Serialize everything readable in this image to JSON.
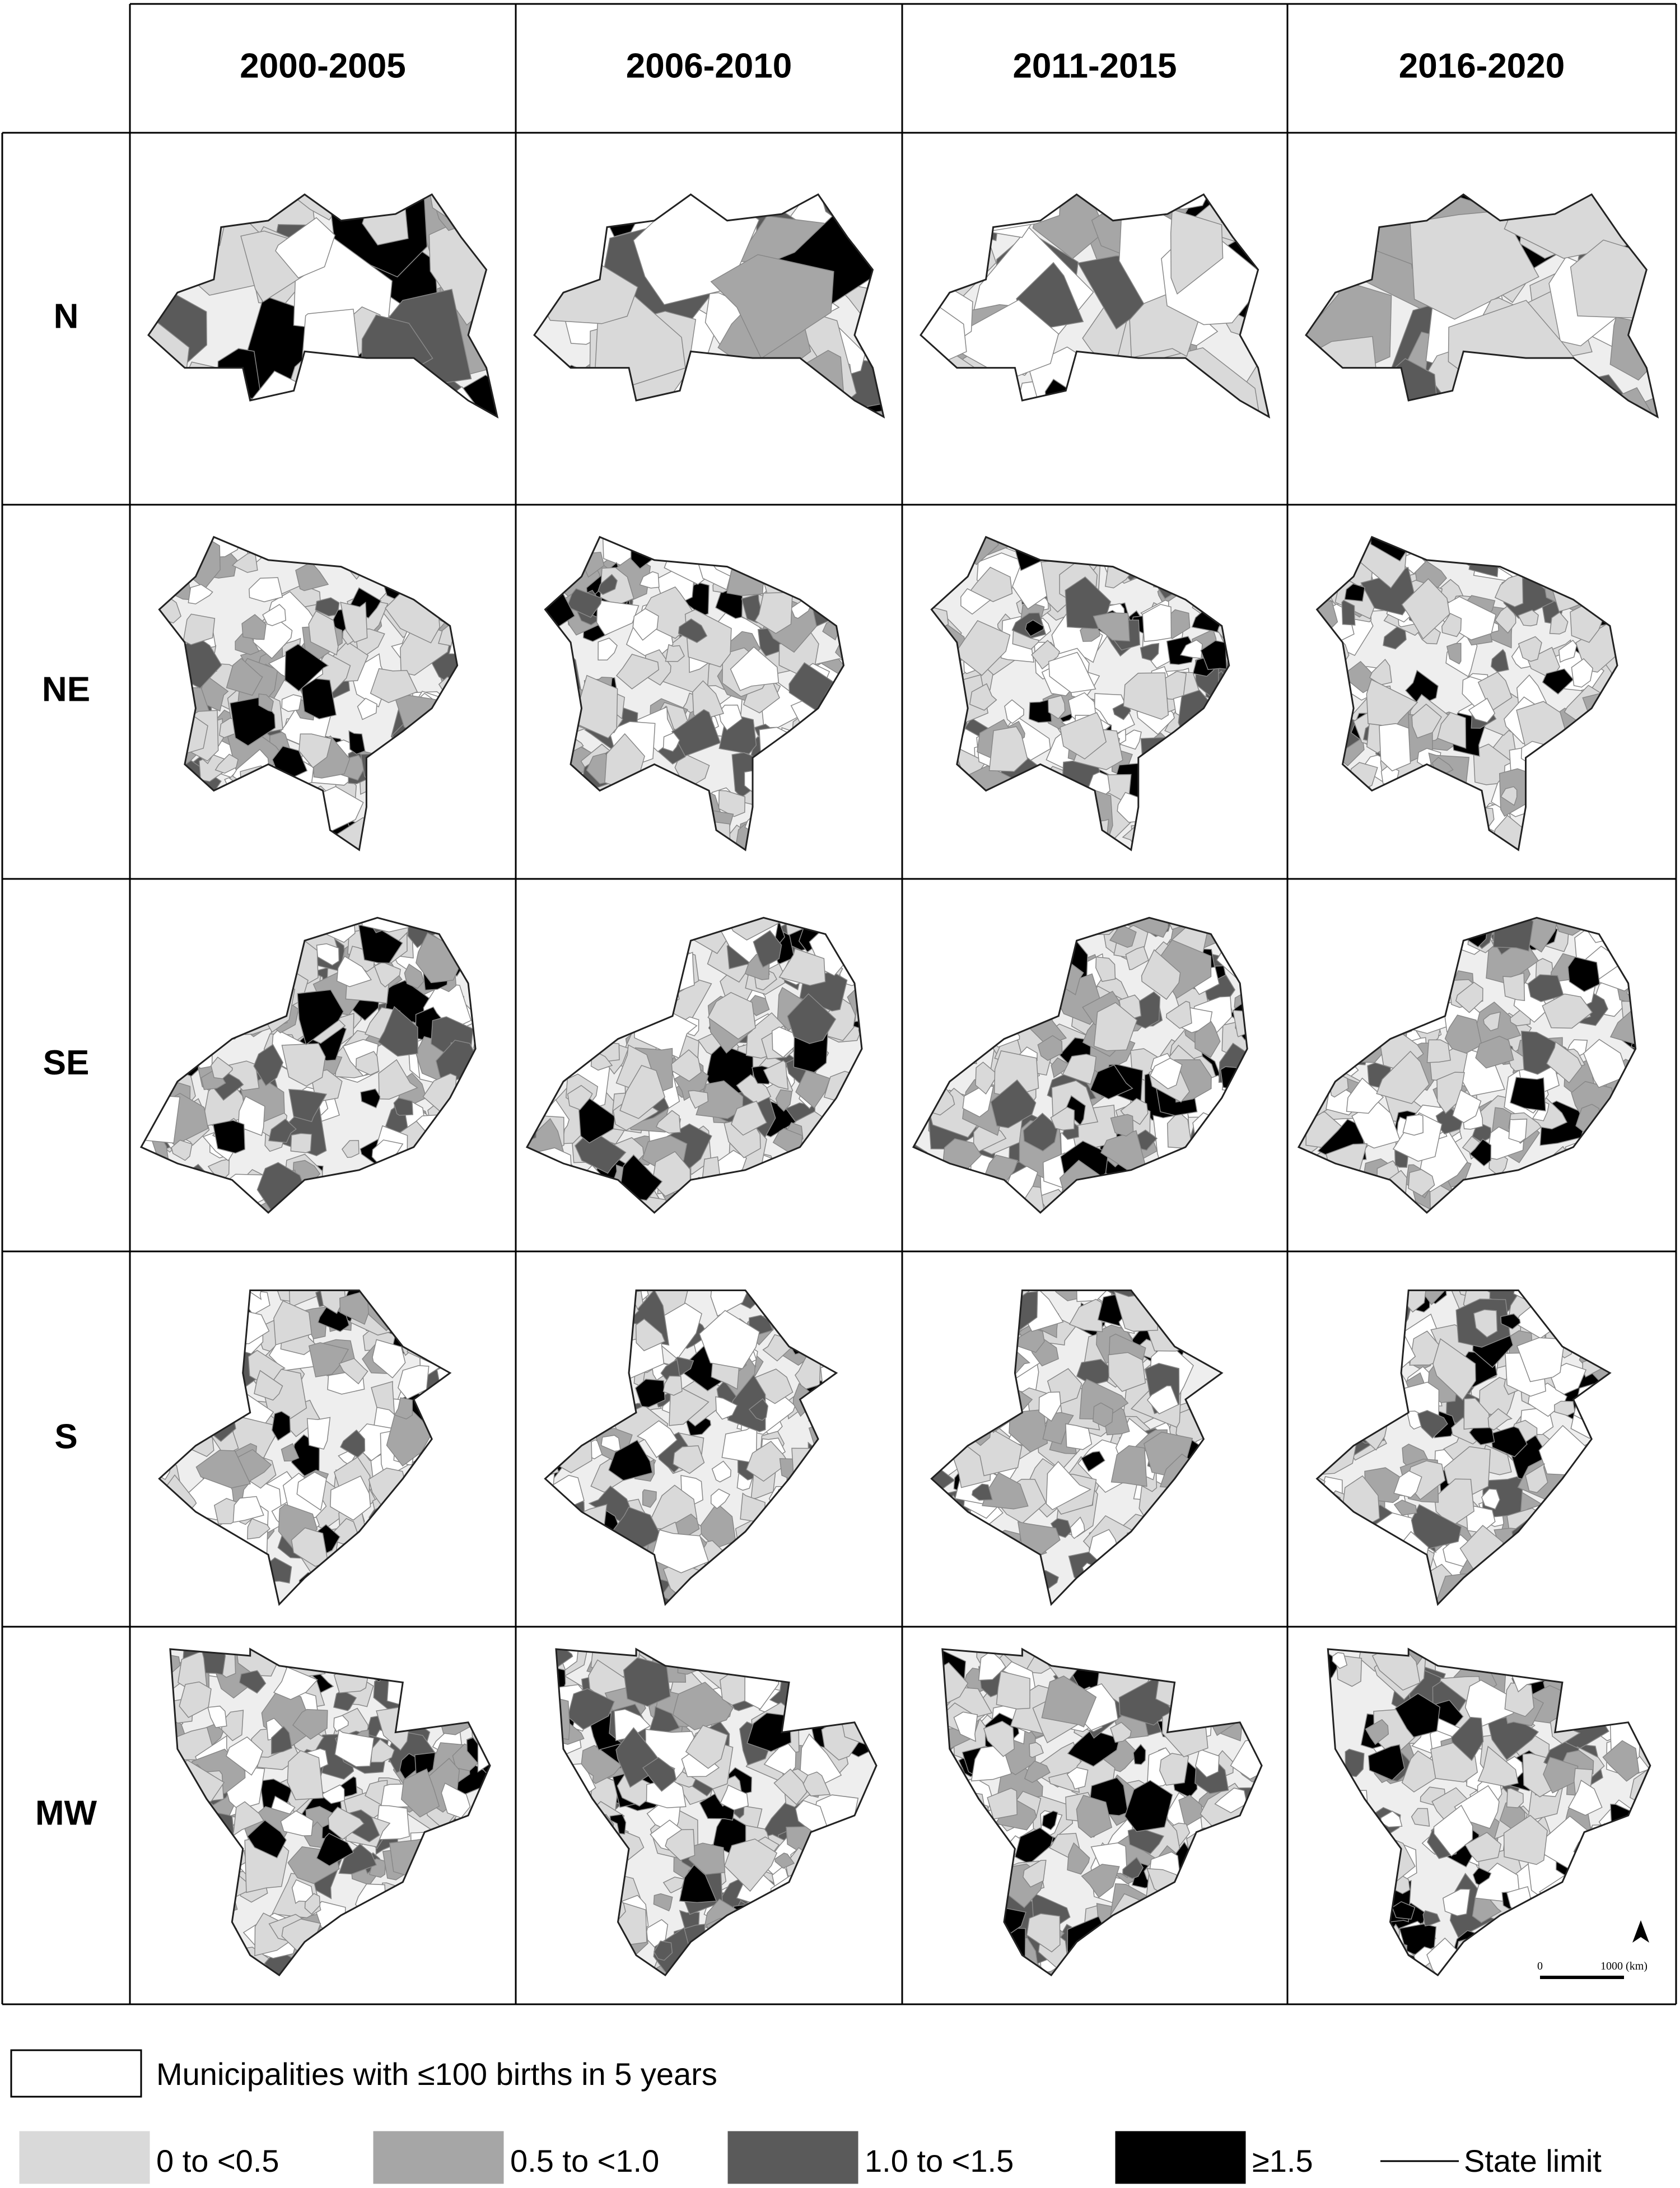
{
  "columns": [
    "2000-2005",
    "2006-2010",
    "2011-2015",
    "2016-2020"
  ],
  "rows": [
    "N",
    "NE",
    "SE",
    "S",
    "MW"
  ],
  "legend": {
    "note": {
      "label": "Municipalities with ≤100 births in 5 years",
      "color": "#ffffff"
    },
    "classes": [
      {
        "label": "0 to <0.5",
        "color": "#d9d9d9"
      },
      {
        "label": "0.5 to <1.0",
        "color": "#a6a6a6"
      },
      {
        "label": "1.0 to <1.5",
        "color": "#5a5a5a"
      },
      {
        "label": "≥1.5",
        "color": "#000000"
      }
    ],
    "state_limit": "State limit"
  },
  "scale_bar": {
    "start": "0",
    "end": "1000 (km)"
  }
}
